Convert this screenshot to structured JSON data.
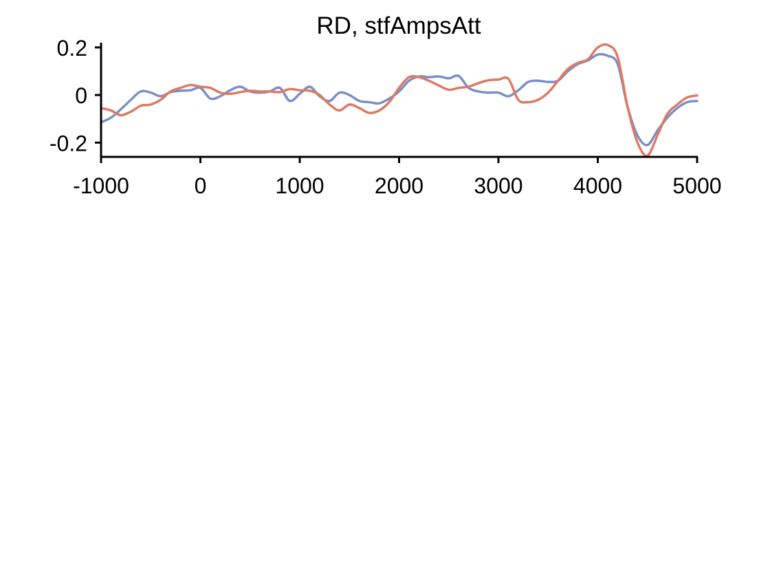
{
  "chart_data": {
    "type": "line",
    "title": "RD, stfAmpsAtt",
    "xlabel": "",
    "ylabel": "",
    "xlim": [
      -1000,
      5000
    ],
    "ylim": [
      -0.26,
      0.22
    ],
    "xticks": [
      -1000,
      0,
      1000,
      2000,
      3000,
      4000,
      5000
    ],
    "xtick_labels": [
      "-1000",
      "0",
      "1000",
      "2000",
      "3000",
      "4000",
      "5000"
    ],
    "yticks": [
      -0.2,
      0,
      0.2
    ],
    "ytick_labels": [
      "-0.2",
      "0",
      "0.2"
    ],
    "grid": false,
    "legend": "none",
    "series": [
      {
        "color": "#7b8fc6",
        "x": [
          -1000,
          -900,
          -800,
          -700,
          -600,
          -500,
          -400,
          -300,
          -200,
          -100,
          0,
          100,
          200,
          300,
          400,
          500,
          600,
          700,
          800,
          900,
          1000,
          1100,
          1200,
          1300,
          1400,
          1500,
          1600,
          1700,
          1800,
          1900,
          2000,
          2100,
          2200,
          2300,
          2400,
          2500,
          2600,
          2700,
          2800,
          2900,
          3000,
          3100,
          3200,
          3300,
          3400,
          3500,
          3600,
          3700,
          3800,
          3900,
          4000,
          4100,
          4200,
          4300,
          4400,
          4500,
          4600,
          4700,
          4800,
          4900,
          5000
        ],
        "values": [
          -0.115,
          -0.095,
          -0.06,
          -0.02,
          0.015,
          0.01,
          -0.005,
          0.012,
          0.018,
          0.02,
          0.03,
          -0.015,
          -0.005,
          0.02,
          0.035,
          0.015,
          0.01,
          0.015,
          0.03,
          -0.025,
          0.005,
          0.035,
          -0.005,
          -0.025,
          0.01,
          0.0,
          -0.025,
          -0.03,
          -0.035,
          -0.015,
          0.015,
          0.06,
          0.078,
          0.075,
          0.078,
          0.07,
          0.08,
          0.03,
          0.015,
          0.01,
          0.01,
          -0.005,
          0.02,
          0.055,
          0.06,
          0.055,
          0.06,
          0.1,
          0.13,
          0.145,
          0.17,
          0.165,
          0.13,
          -0.05,
          -0.17,
          -0.21,
          -0.15,
          -0.095,
          -0.055,
          -0.03,
          -0.025
        ]
      },
      {
        "color": "#dd7a63",
        "x": [
          -1000,
          -900,
          -800,
          -700,
          -600,
          -500,
          -400,
          -300,
          -200,
          -100,
          0,
          100,
          200,
          300,
          400,
          500,
          600,
          700,
          800,
          900,
          1000,
          1100,
          1200,
          1300,
          1400,
          1500,
          1600,
          1700,
          1800,
          1900,
          2000,
          2100,
          2200,
          2300,
          2400,
          2500,
          2600,
          2700,
          2800,
          2900,
          3000,
          3100,
          3200,
          3300,
          3400,
          3500,
          3600,
          3700,
          3800,
          3900,
          4000,
          4100,
          4200,
          4300,
          4400,
          4500,
          4600,
          4700,
          4800,
          4900,
          5000
        ],
        "values": [
          -0.055,
          -0.065,
          -0.085,
          -0.07,
          -0.045,
          -0.04,
          -0.02,
          0.015,
          0.03,
          0.042,
          0.035,
          0.03,
          0.01,
          0.005,
          0.012,
          0.018,
          0.015,
          0.015,
          0.012,
          0.025,
          0.02,
          0.018,
          0.0,
          -0.04,
          -0.065,
          -0.04,
          -0.055,
          -0.075,
          -0.065,
          -0.03,
          0.03,
          0.075,
          0.075,
          0.06,
          0.04,
          0.022,
          0.03,
          0.035,
          0.05,
          0.062,
          0.065,
          0.068,
          -0.02,
          -0.03,
          -0.02,
          0.01,
          0.06,
          0.11,
          0.135,
          0.15,
          0.2,
          0.21,
          0.16,
          -0.05,
          -0.2,
          -0.255,
          -0.17,
          -0.08,
          -0.04,
          -0.01,
          -0.002
        ]
      }
    ]
  }
}
